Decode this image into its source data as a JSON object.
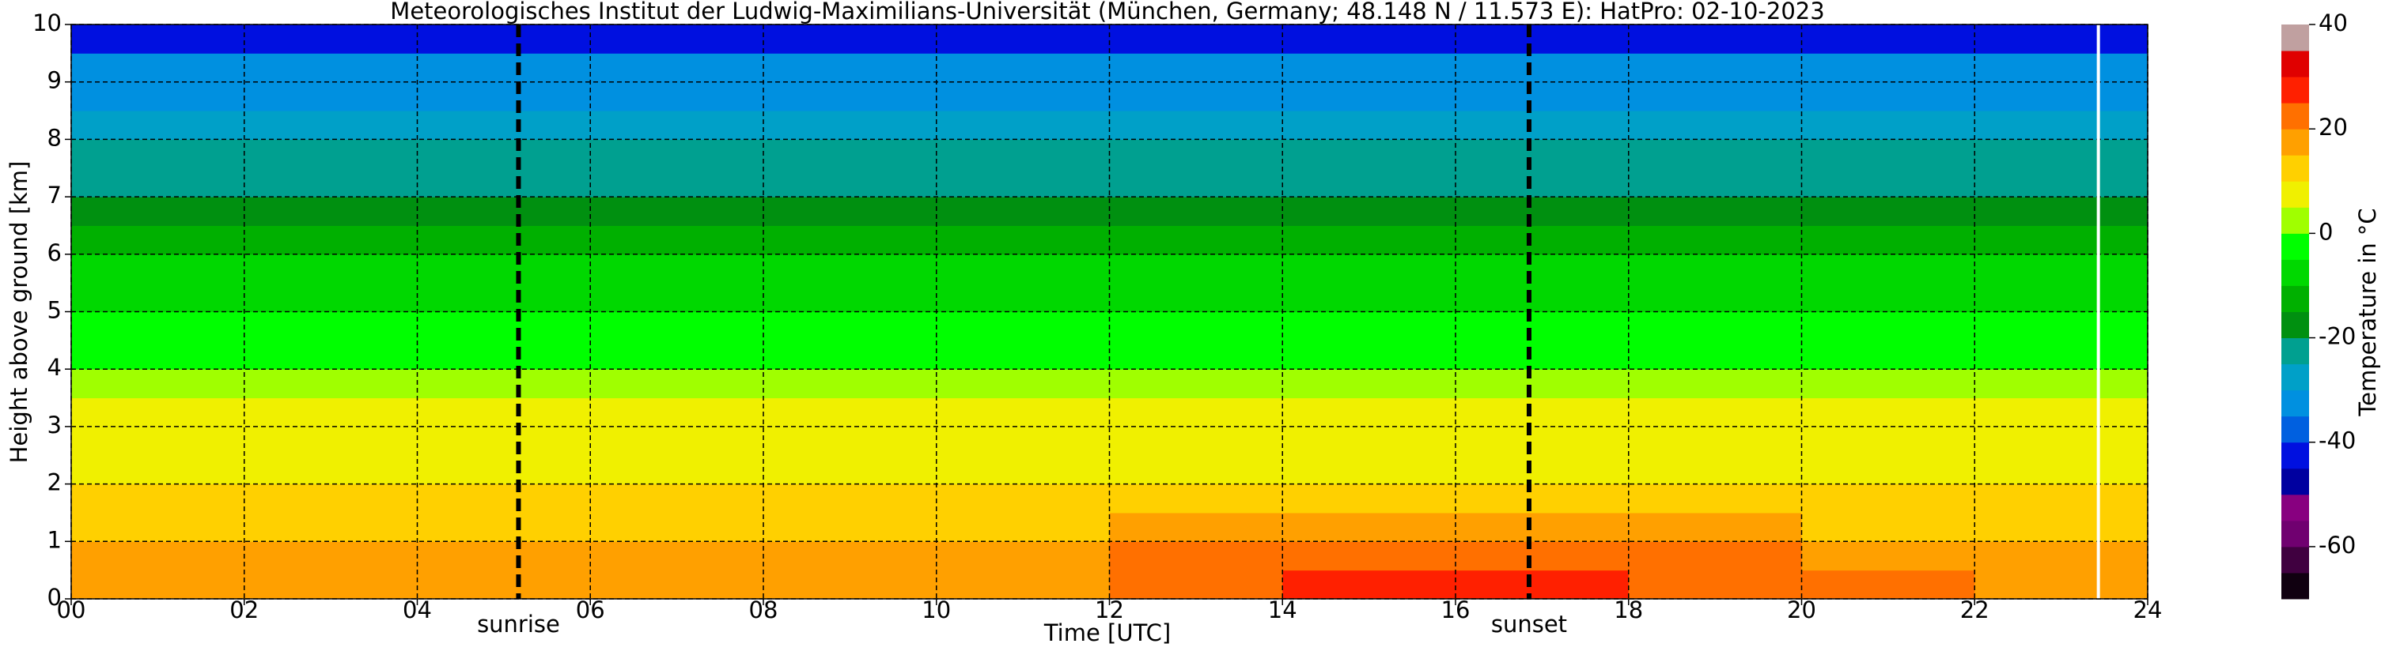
{
  "chart_data": {
    "type": "heatmap",
    "title": "Meteorologisches Institut der Ludwig-Maximilians-Universität (München, Germany; 48.148 N / 11.573 E):    HatPro: 02-10-2023",
    "xlabel": "Time [UTC]",
    "ylabel": "Height above ground [km]",
    "xlim": [
      0,
      24
    ],
    "ylim": [
      0,
      10
    ],
    "xticks": [
      {
        "value": 0,
        "label": "00"
      },
      {
        "value": 2,
        "label": "02"
      },
      {
        "value": 4,
        "label": "04"
      },
      {
        "value": 6,
        "label": "06"
      },
      {
        "value": 8,
        "label": "08"
      },
      {
        "value": 10,
        "label": "10"
      },
      {
        "value": 12,
        "label": "12"
      },
      {
        "value": 14,
        "label": "14"
      },
      {
        "value": 16,
        "label": "16"
      },
      {
        "value": 18,
        "label": "18"
      },
      {
        "value": 20,
        "label": "20"
      },
      {
        "value": 22,
        "label": "22"
      },
      {
        "value": 24,
        "label": "24"
      }
    ],
    "yticks": [
      0,
      1,
      2,
      3,
      4,
      5,
      6,
      7,
      8,
      9,
      10
    ],
    "grid": true,
    "x_edges": [
      0,
      2,
      4,
      6,
      8,
      10,
      12,
      14,
      16,
      18,
      20,
      22,
      24
    ],
    "y_edges": [
      0,
      0.5,
      1,
      1.5,
      2,
      2.5,
      3,
      3.5,
      4,
      4.5,
      5,
      5.5,
      6,
      6.5,
      7,
      7.5,
      8,
      8.5,
      9,
      9.5,
      10
    ],
    "z": [
      [
        17,
        17,
        17,
        17,
        18,
        19,
        24,
        26,
        26,
        24,
        20,
        19
      ],
      [
        15,
        15,
        15,
        15,
        16,
        17,
        20,
        22,
        22,
        20,
        17,
        16
      ],
      [
        13,
        13,
        13,
        13,
        13,
        14,
        15,
        16,
        16,
        15,
        14,
        14
      ],
      [
        12,
        12,
        12,
        12,
        12,
        12,
        13,
        13,
        13,
        13,
        12,
        12
      ],
      [
        9,
        9,
        9,
        9,
        9,
        9,
        9,
        9,
        9,
        9,
        9,
        9
      ],
      [
        7,
        7,
        7,
        7,
        7,
        7,
        7,
        7,
        7,
        7,
        7,
        7
      ],
      [
        5,
        5,
        5,
        5,
        5,
        5,
        5,
        5,
        5,
        5,
        5,
        5
      ],
      [
        3,
        3,
        3,
        3,
        3,
        3,
        3,
        3,
        3,
        3,
        3,
        3
      ],
      [
        -2,
        -2,
        -2,
        -2,
        -2,
        -2,
        -2,
        -2,
        -2,
        -2,
        -2,
        -2
      ],
      [
        -4,
        -4,
        -4,
        -4,
        -4,
        -4,
        -4,
        -4,
        -4,
        -4,
        -4,
        -4
      ],
      [
        -7,
        -7,
        -7,
        -7,
        -7,
        -7,
        -7,
        -7,
        -7,
        -7,
        -7,
        -7
      ],
      [
        -9,
        -9,
        -9,
        -9,
        -9,
        -9,
        -9,
        -9,
        -9,
        -9,
        -9,
        -9
      ],
      [
        -13,
        -13,
        -13,
        -13,
        -13,
        -13,
        -13,
        -13,
        -13,
        -13,
        -13,
        -13
      ],
      [
        -16,
        -16,
        -16,
        -16,
        -16,
        -16,
        -16,
        -16,
        -16,
        -16,
        -16,
        -16
      ],
      [
        -21,
        -21,
        -21,
        -21,
        -21,
        -21,
        -21,
        -21,
        -21,
        -21,
        -21,
        -21
      ],
      [
        -24,
        -24,
        -24,
        -24,
        -24,
        -24,
        -24,
        -24,
        -24,
        -24,
        -24,
        -24
      ],
      [
        -28,
        -28,
        -28,
        -28,
        -28,
        -28,
        -28,
        -28,
        -28,
        -28,
        -28,
        -28
      ],
      [
        -31,
        -31,
        -31,
        -31,
        -31,
        -31,
        -31,
        -31,
        -31,
        -31,
        -31,
        -31
      ],
      [
        -34,
        -34,
        -34,
        -34,
        -34,
        -34,
        -34,
        -34,
        -34,
        -34,
        -34,
        -34
      ],
      [
        -45,
        -45,
        -45,
        -45,
        -45,
        -45,
        -45,
        -45,
        -45,
        -45,
        -45,
        -45
      ]
    ],
    "colorbar": {
      "label": "Temperature in °C",
      "lim": [
        -70,
        40
      ],
      "ticks": [
        -60,
        -40,
        -20,
        0,
        20,
        40
      ],
      "bounds": [
        -70,
        -65,
        -60,
        -55,
        -50,
        -45,
        -40,
        -35,
        -30,
        -25,
        -20,
        -15,
        -10,
        -5,
        0,
        5,
        10,
        15,
        20,
        25,
        30,
        35,
        40
      ],
      "colors": [
        "#100010",
        "#400040",
        "#700070",
        "#880080",
        "#0000a0",
        "#0010e0",
        "#0060e0",
        "#0090e0",
        "#00a0c8",
        "#00a090",
        "#009010",
        "#00b000",
        "#00d800",
        "#00ff00",
        "#a0ff00",
        "#f0f000",
        "#ffd000",
        "#ffa000",
        "#ff7000",
        "#ff2000",
        "#e00000",
        "#c0a0a0"
      ]
    },
    "lines": [
      {
        "x": 5.17,
        "label": "sunrise",
        "color": "#000000",
        "style": "dashed"
      },
      {
        "x": 16.85,
        "label": "sunset",
        "color": "#000000",
        "style": "dashed"
      },
      {
        "x": 23.43,
        "color": "#ffffff",
        "style": "solid"
      }
    ]
  }
}
